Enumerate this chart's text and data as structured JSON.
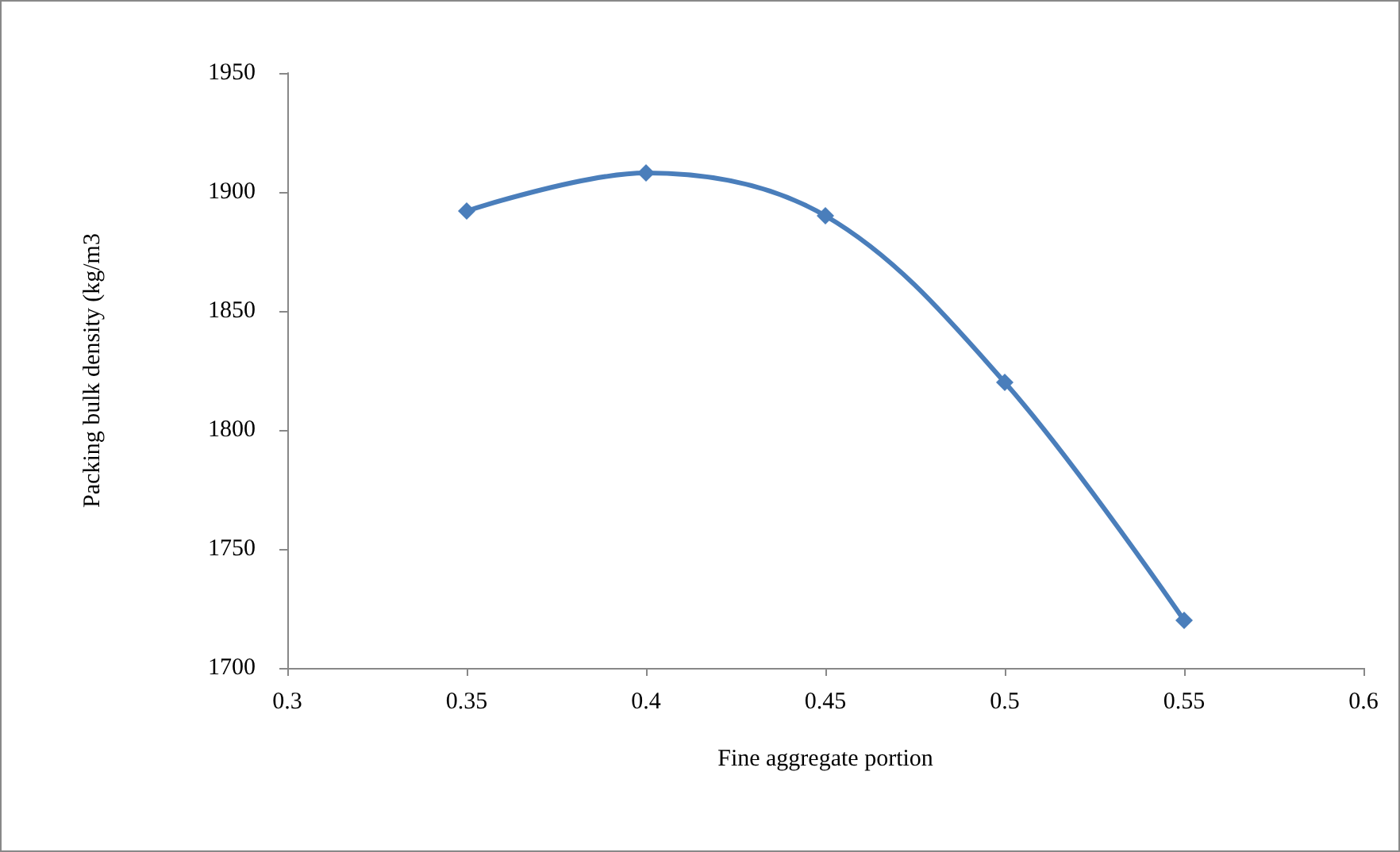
{
  "chart_data": {
    "type": "line",
    "xlabel": "Fine aggregate portion",
    "ylabel": "Packing bulk density (kg/m3",
    "x": [
      0.35,
      0.4,
      0.45,
      0.5,
      0.55
    ],
    "series": [
      {
        "color": "#4a7ebb",
        "values": [
          1892,
          1908,
          1890,
          1820,
          1720
        ]
      }
    ],
    "xlim": [
      0.3,
      0.6
    ],
    "xticks": [
      0.3,
      0.35,
      0.4,
      0.45,
      0.5,
      0.55,
      0.6
    ],
    "ylim": [
      1700,
      1950
    ],
    "yticks": [
      1700,
      1750,
      1800,
      1850,
      1900,
      1950
    ],
    "grid": false,
    "marker": "diamond",
    "line_style": "solid"
  }
}
